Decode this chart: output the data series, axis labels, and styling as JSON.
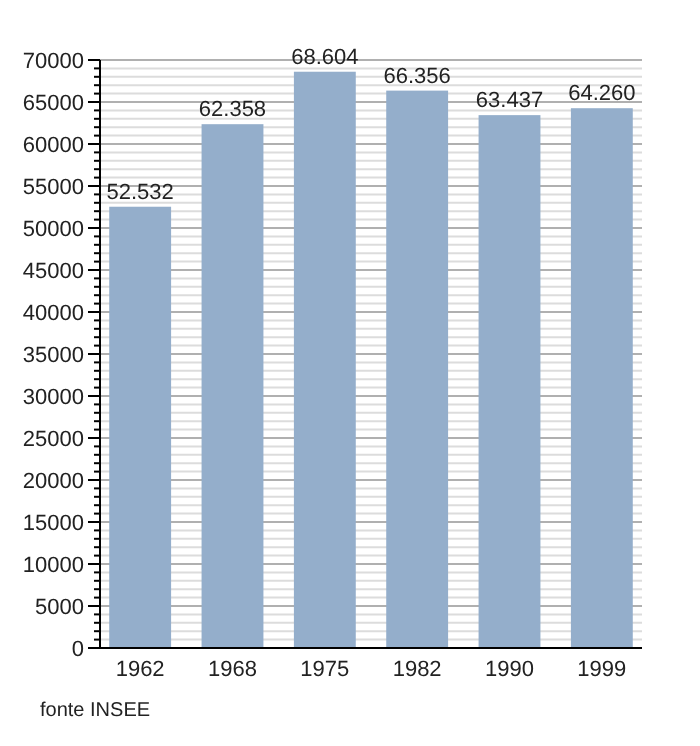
{
  "chart_data": {
    "type": "bar",
    "categories": [
      "1962",
      "1968",
      "1975",
      "1982",
      "1990",
      "1999"
    ],
    "values": [
      52532,
      62358,
      68604,
      66356,
      63437,
      64260
    ],
    "value_labels": [
      "52.532",
      "62.358",
      "68.604",
      "66.356",
      "63.437",
      "64.260"
    ],
    "color": "#94aecb",
    "ylim": [
      0,
      70000
    ],
    "yticks": [
      0,
      {
        "value": 1000,
        "label": null
      },
      {
        "value": 2000,
        "label": null
      },
      {
        "value": 3000,
        "label": null
      },
      {
        "value": 4000,
        "label": null
      },
      5000,
      {
        "value": 6000,
        "label": null
      },
      {
        "value": 7000,
        "label": null
      },
      {
        "value": 8000,
        "label": null
      },
      {
        "value": 9000,
        "label": null
      },
      10000,
      {
        "value": 11000,
        "label": null
      },
      {
        "value": 12000,
        "label": null
      },
      {
        "value": 13000,
        "label": null
      },
      {
        "value": 14000,
        "label": null
      },
      15000,
      {
        "value": 16000,
        "label": null
      },
      {
        "value": 17000,
        "label": null
      },
      {
        "value": 18000,
        "label": null
      },
      {
        "value": 19000,
        "label": null
      },
      20000,
      {
        "value": 21000,
        "label": null
      },
      {
        "value": 22000,
        "label": null
      },
      {
        "value": 23000,
        "label": null
      },
      {
        "value": 24000,
        "label": null
      },
      25000,
      {
        "value": 26000,
        "label": null
      },
      {
        "value": 27000,
        "label": null
      },
      {
        "value": 28000,
        "label": null
      },
      {
        "value": 29000,
        "label": null
      },
      30000,
      {
        "value": 31000,
        "label": null
      },
      {
        "value": 32000,
        "label": null
      },
      {
        "value": 33000,
        "label": null
      },
      {
        "value": 34000,
        "label": null
      },
      35000,
      {
        "value": 36000,
        "label": null
      },
      {
        "value": 37000,
        "label": null
      },
      {
        "value": 38000,
        "label": null
      },
      {
        "value": 39000,
        "label": null
      },
      40000,
      {
        "value": 41000,
        "label": null
      },
      {
        "value": 42000,
        "label": null
      },
      {
        "value": 43000,
        "label": null
      },
      {
        "value": 44000,
        "label": null
      },
      45000,
      {
        "value": 46000,
        "label": null
      },
      {
        "value": 47000,
        "label": null
      },
      {
        "value": 48000,
        "label": null
      },
      {
        "value": 49000,
        "label": null
      },
      50000,
      {
        "value": 51000,
        "label": null
      },
      {
        "value": 52000,
        "label": null
      },
      {
        "value": 53000,
        "label": null
      },
      {
        "value": 54000,
        "label": null
      },
      55000,
      {
        "value": 56000,
        "label": null
      },
      {
        "value": 57000,
        "label": null
      },
      {
        "value": 58000,
        "label": null
      },
      {
        "value": 59000,
        "label": null
      },
      60000,
      {
        "value": 61000,
        "label": null
      },
      {
        "value": 62000,
        "label": null
      },
      {
        "value": 63000,
        "label": null
      },
      {
        "value": 64000,
        "label": null
      },
      65000,
      {
        "value": 66000,
        "label": null
      },
      {
        "value": 67000,
        "label": null
      },
      {
        "value": 68000,
        "label": null
      },
      {
        "value": 69000,
        "label": null
      },
      70000
    ],
    "grid": "y",
    "annotations": [
      "fonte INSEE"
    ]
  }
}
